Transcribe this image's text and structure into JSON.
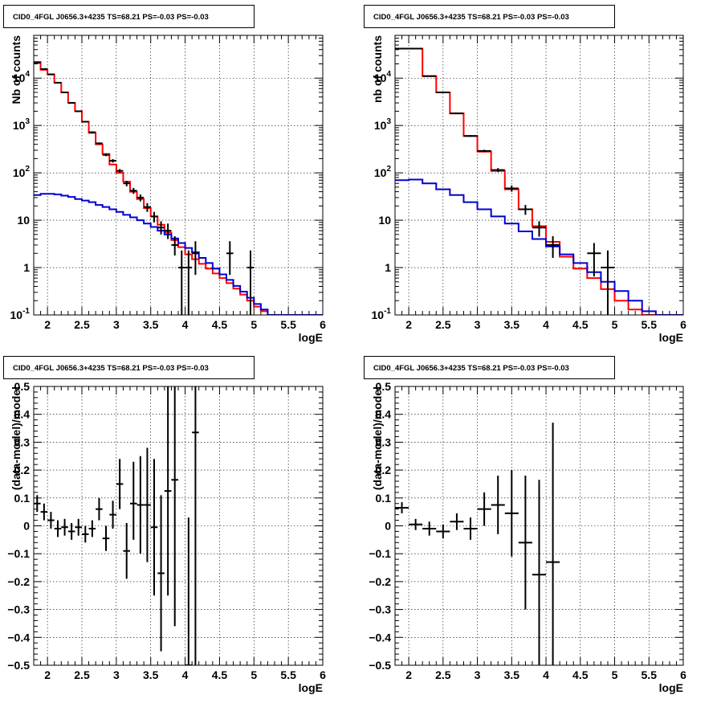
{
  "chart_data": [
    {
      "id": "top-left",
      "type": "line",
      "title": "CID0_4FGL J0656.3+4235 TS=68.21 PS=-0.03 PS=-0.03",
      "xlabel": "logE",
      "ylabel": "Nb of counts",
      "log_y": true,
      "xlim": [
        1.8,
        6.0
      ],
      "ylim": [
        0.1,
        80000
      ],
      "x_ticks": [
        "2",
        "2.5",
        "3",
        "3.5",
        "4",
        "4.5",
        "5",
        "5.5",
        "6"
      ],
      "y_ticks": [
        "10^-1",
        "1",
        "10",
        "10^2",
        "10^3",
        "10^4"
      ],
      "grid": true,
      "bin_edges": [
        1.8,
        1.9,
        2.0,
        2.1,
        2.2,
        2.3,
        2.4,
        2.5,
        2.6,
        2.7,
        2.8,
        2.9,
        3.0,
        3.1,
        3.2,
        3.3,
        3.4,
        3.5,
        3.6,
        3.7,
        3.8,
        3.9,
        4.0,
        4.1,
        4.2,
        4.3,
        4.4,
        4.5,
        4.6,
        4.7,
        4.8,
        4.9,
        5.0,
        5.1,
        5.2,
        5.3,
        5.4,
        5.5,
        5.6,
        5.7,
        5.8,
        5.9,
        6.0
      ],
      "series": [
        {
          "color": "#ff0000",
          "style": "step",
          "values": [
            22000,
            15000,
            12000,
            8000,
            5000,
            3000,
            2000,
            1200,
            700,
            400,
            250,
            150,
            100,
            65,
            40,
            28,
            18,
            12,
            8,
            5.5,
            3.8,
            2.7,
            1.9,
            1.5,
            1.2,
            0.95,
            0.75,
            0.6,
            0.47,
            0.36,
            0.27,
            0.2,
            0.15,
            0.12,
            0.1,
            0.1,
            0.1,
            0.1,
            0.1,
            0.1,
            0.1,
            0.1
          ]
        },
        {
          "color": "#0000d0",
          "style": "step",
          "values": [
            34,
            36,
            36,
            35,
            33,
            31,
            28,
            26,
            24,
            21,
            19,
            17,
            15,
            13,
            11.5,
            10,
            8.5,
            7.2,
            6,
            5,
            4.1,
            3.3,
            2.6,
            2.1,
            1.6,
            1.25,
            0.95,
            0.72,
            0.55,
            0.41,
            0.31,
            0.23,
            0.17,
            0.13,
            0.1,
            0.1,
            0.1,
            0.1,
            0.1,
            0.1,
            0.1,
            0.1
          ]
        }
      ],
      "points": [
        {
          "x": 1.85,
          "y": 21000,
          "xerr": 0.05,
          "ylo": 20800,
          "yhi": 21200
        },
        {
          "x": 1.95,
          "y": 15500,
          "xerr": 0.05,
          "ylo": 15300,
          "yhi": 15700
        },
        {
          "x": 2.05,
          "y": 12000,
          "xerr": 0.05,
          "ylo": 11800,
          "yhi": 12200
        },
        {
          "x": 2.15,
          "y": 8000,
          "xerr": 0.05,
          "ylo": 7900,
          "yhi": 8100
        },
        {
          "x": 2.25,
          "y": 5000,
          "xerr": 0.05,
          "ylo": 4900,
          "yhi": 5100
        },
        {
          "x": 2.35,
          "y": 3000,
          "xerr": 0.05,
          "ylo": 2950,
          "yhi": 3050
        },
        {
          "x": 2.45,
          "y": 2000,
          "xerr": 0.05,
          "ylo": 1950,
          "yhi": 2050
        },
        {
          "x": 2.55,
          "y": 1200,
          "xerr": 0.05,
          "ylo": 1170,
          "yhi": 1230
        },
        {
          "x": 2.65,
          "y": 720,
          "xerr": 0.05,
          "ylo": 690,
          "yhi": 750
        },
        {
          "x": 2.75,
          "y": 420,
          "xerr": 0.05,
          "ylo": 400,
          "yhi": 440
        },
        {
          "x": 2.85,
          "y": 240,
          "xerr": 0.05,
          "ylo": 225,
          "yhi": 255
        },
        {
          "x": 2.95,
          "y": 180,
          "xerr": 0.05,
          "ylo": 165,
          "yhi": 195
        },
        {
          "x": 3.05,
          "y": 110,
          "xerr": 0.05,
          "ylo": 100,
          "yhi": 120
        },
        {
          "x": 3.15,
          "y": 60,
          "xerr": 0.05,
          "ylo": 52,
          "yhi": 68
        },
        {
          "x": 3.25,
          "y": 42,
          "xerr": 0.05,
          "ylo": 36,
          "yhi": 48
        },
        {
          "x": 3.35,
          "y": 30,
          "xerr": 0.05,
          "ylo": 25,
          "yhi": 35
        },
        {
          "x": 3.45,
          "y": 19,
          "xerr": 0.05,
          "ylo": 15,
          "yhi": 23
        },
        {
          "x": 3.55,
          "y": 12,
          "xerr": 0.05,
          "ylo": 9,
          "yhi": 15
        },
        {
          "x": 3.65,
          "y": 7,
          "xerr": 0.05,
          "ylo": 5,
          "yhi": 9.5
        },
        {
          "x": 3.75,
          "y": 6,
          "xerr": 0.05,
          "ylo": 4,
          "yhi": 8.5
        },
        {
          "x": 3.85,
          "y": 3,
          "xerr": 0.05,
          "ylo": 1.8,
          "yhi": 4.6
        },
        {
          "x": 3.95,
          "y": 1,
          "xerr": 0.05,
          "ylo": 0.1,
          "yhi": 2.3
        },
        {
          "x": 4.05,
          "y": 1,
          "xerr": 0.05,
          "ylo": 0.1,
          "yhi": 2.3
        },
        {
          "x": 4.15,
          "y": 2,
          "xerr": 0.05,
          "ylo": 0.7,
          "yhi": 3.6
        },
        {
          "x": 4.65,
          "y": 2,
          "xerr": 0.05,
          "ylo": 0.7,
          "yhi": 3.6
        },
        {
          "x": 4.95,
          "y": 1,
          "xerr": 0.05,
          "ylo": 0.1,
          "yhi": 2.3
        }
      ]
    },
    {
      "id": "top-right",
      "type": "line",
      "title": "CID0_4FGL J0656.3+4235 TS=68.21 PS=-0.03 PS=-0.03",
      "xlabel": "logE",
      "ylabel": "nb of counts",
      "log_y": true,
      "xlim": [
        1.8,
        6.0
      ],
      "ylim": [
        0.1,
        80000
      ],
      "x_ticks": [
        "2",
        "2.5",
        "3",
        "3.5",
        "4",
        "4.5",
        "5",
        "5.5",
        "6"
      ],
      "y_ticks": [
        "10^-1",
        "1",
        "10",
        "10^2",
        "10^3",
        "10^4"
      ],
      "grid": true,
      "bin_edges": [
        1.8,
        2.0,
        2.2,
        2.4,
        2.6,
        2.8,
        3.0,
        3.2,
        3.4,
        3.6,
        3.8,
        4.0,
        4.2,
        4.4,
        4.6,
        4.8,
        5.0,
        5.2,
        5.4,
        5.6,
        5.8,
        6.0
      ],
      "series": [
        {
          "color": "#ff0000",
          "style": "step",
          "values": [
            42000,
            42000,
            11000,
            5000,
            1800,
            600,
            280,
            110,
            45,
            17,
            7.5,
            3.5,
            1.7,
            0.95,
            0.6,
            0.35,
            0.2,
            0.13,
            0.1,
            0.1,
            0.1
          ]
        },
        {
          "color": "#0000d0",
          "style": "step",
          "values": [
            70,
            72,
            60,
            45,
            34,
            24,
            17,
            12,
            8.5,
            5.8,
            4.0,
            2.8,
            1.9,
            1.25,
            0.8,
            0.5,
            0.32,
            0.2,
            0.12,
            0.1,
            0.1
          ]
        }
      ],
      "points": [
        {
          "x": 1.9,
          "y": 42000,
          "xerr": 0.1,
          "ylo": 41700,
          "yhi": 42300
        },
        {
          "x": 2.1,
          "y": 42000,
          "xerr": 0.1,
          "ylo": 41700,
          "yhi": 42300
        },
        {
          "x": 2.3,
          "y": 11000,
          "xerr": 0.1,
          "ylo": 10900,
          "yhi": 11100
        },
        {
          "x": 2.5,
          "y": 5000,
          "xerr": 0.1,
          "ylo": 4930,
          "yhi": 5070
        },
        {
          "x": 2.7,
          "y": 1800,
          "xerr": 0.1,
          "ylo": 1760,
          "yhi": 1840
        },
        {
          "x": 2.9,
          "y": 600,
          "xerr": 0.1,
          "ylo": 575,
          "yhi": 625
        },
        {
          "x": 3.1,
          "y": 290,
          "xerr": 0.1,
          "ylo": 273,
          "yhi": 307
        },
        {
          "x": 3.3,
          "y": 115,
          "xerr": 0.1,
          "ylo": 104,
          "yhi": 126
        },
        {
          "x": 3.5,
          "y": 47,
          "xerr": 0.1,
          "ylo": 40,
          "yhi": 54
        },
        {
          "x": 3.7,
          "y": 17,
          "xerr": 0.1,
          "ylo": 13,
          "yhi": 21
        },
        {
          "x": 3.9,
          "y": 7,
          "xerr": 0.1,
          "ylo": 4.5,
          "yhi": 9.5
        },
        {
          "x": 4.1,
          "y": 3,
          "xerr": 0.1,
          "ylo": 1.6,
          "yhi": 4.6
        },
        {
          "x": 4.7,
          "y": 2,
          "xerr": 0.1,
          "ylo": 0.65,
          "yhi": 3.3
        },
        {
          "x": 4.9,
          "y": 1,
          "xerr": 0.1,
          "ylo": 0.1,
          "yhi": 2.3
        }
      ]
    },
    {
      "id": "bottom-left",
      "type": "scatter",
      "title": "CID0_4FGL J0656.3+4235 TS=68.21 PS=-0.03 PS=-0.03",
      "xlabel": "logE",
      "ylabel": "(data-model)/model",
      "log_y": false,
      "xlim": [
        1.8,
        6.0
      ],
      "ylim": [
        -0.5,
        0.5
      ],
      "x_ticks": [
        "2",
        "2.5",
        "3",
        "3.5",
        "4",
        "4.5",
        "5",
        "5.5",
        "6"
      ],
      "y_ticks": [
        "−0.5",
        "−0.4",
        "−0.3",
        "−0.2",
        "−0.1",
        "0",
        "0.1",
        "0.2",
        "0.3",
        "0.4",
        "0.5"
      ],
      "y_tick_values": [
        -0.5,
        -0.4,
        -0.3,
        -0.2,
        -0.1,
        0,
        0.1,
        0.2,
        0.3,
        0.4,
        0.5
      ],
      "grid": true,
      "points": [
        {
          "x": 1.85,
          "y": 0.08,
          "xerr": 0.05,
          "ylo": 0.05,
          "yhi": 0.11
        },
        {
          "x": 1.95,
          "y": 0.05,
          "xerr": 0.05,
          "ylo": 0.02,
          "yhi": 0.08
        },
        {
          "x": 2.05,
          "y": 0.02,
          "xerr": 0.05,
          "ylo": -0.01,
          "yhi": 0.05
        },
        {
          "x": 2.15,
          "y": -0.01,
          "xerr": 0.05,
          "ylo": -0.04,
          "yhi": 0.02
        },
        {
          "x": 2.25,
          "y": -0.005,
          "xerr": 0.05,
          "ylo": -0.035,
          "yhi": 0.025
        },
        {
          "x": 2.35,
          "y": -0.02,
          "xerr": 0.05,
          "ylo": -0.05,
          "yhi": 0.01
        },
        {
          "x": 2.45,
          "y": -0.005,
          "xerr": 0.05,
          "ylo": -0.035,
          "yhi": 0.025
        },
        {
          "x": 2.55,
          "y": -0.03,
          "xerr": 0.05,
          "ylo": -0.06,
          "yhi": 0.0
        },
        {
          "x": 2.65,
          "y": -0.01,
          "xerr": 0.05,
          "ylo": -0.04,
          "yhi": 0.02
        },
        {
          "x": 2.75,
          "y": 0.06,
          "xerr": 0.05,
          "ylo": 0.02,
          "yhi": 0.1
        },
        {
          "x": 2.85,
          "y": -0.045,
          "xerr": 0.05,
          "ylo": -0.09,
          "yhi": 0.0
        },
        {
          "x": 2.95,
          "y": 0.04,
          "xerr": 0.05,
          "ylo": -0.01,
          "yhi": 0.09
        },
        {
          "x": 3.05,
          "y": 0.15,
          "xerr": 0.05,
          "ylo": 0.06,
          "yhi": 0.24
        },
        {
          "x": 3.15,
          "y": -0.09,
          "xerr": 0.05,
          "ylo": -0.19,
          "yhi": 0.01
        },
        {
          "x": 3.25,
          "y": 0.08,
          "xerr": 0.05,
          "ylo": -0.05,
          "yhi": 0.23
        },
        {
          "x": 3.35,
          "y": 0.075,
          "xerr": 0.05,
          "ylo": -0.1,
          "yhi": 0.25
        },
        {
          "x": 3.45,
          "y": 0.075,
          "xerr": 0.05,
          "ylo": -0.13,
          "yhi": 0.28
        },
        {
          "x": 3.55,
          "y": -0.005,
          "xerr": 0.05,
          "ylo": -0.25,
          "yhi": 0.24
        },
        {
          "x": 3.65,
          "y": -0.17,
          "xerr": 0.05,
          "ylo": -0.45,
          "yhi": 0.11
        },
        {
          "x": 3.75,
          "y": 0.125,
          "xerr": 0.05,
          "ylo": -0.25,
          "yhi": 0.5
        },
        {
          "x": 3.85,
          "y": 0.165,
          "xerr": 0.05,
          "ylo": -0.36,
          "yhi": 0.5
        },
        {
          "x": 4.05,
          "y": -0.5,
          "xerr": 0.05,
          "ylo": -0.5,
          "yhi": 0.03
        },
        {
          "x": 4.15,
          "y": 0.335,
          "xerr": 0.05,
          "ylo": -0.5,
          "yhi": 0.5
        }
      ]
    },
    {
      "id": "bottom-right",
      "type": "scatter",
      "title": "CID0_4FGL J0656.3+4235 TS=68.21 PS=-0.03 PS=-0.03",
      "xlabel": "logE",
      "ylabel": "(data-model)/model",
      "log_y": false,
      "xlim": [
        1.8,
        6.0
      ],
      "ylim": [
        -0.5,
        0.5
      ],
      "x_ticks": [
        "2",
        "2.5",
        "3",
        "3.5",
        "4",
        "4.5",
        "5",
        "5.5",
        "6"
      ],
      "y_ticks": [
        "−0.5",
        "−0.4",
        "−0.3",
        "−0.2",
        "−0.1",
        "0",
        "0.1",
        "0.2",
        "0.3",
        "0.4",
        "0.5"
      ],
      "y_tick_values": [
        -0.5,
        -0.4,
        -0.3,
        -0.2,
        -0.1,
        0,
        0.1,
        0.2,
        0.3,
        0.4,
        0.5
      ],
      "grid": true,
      "points": [
        {
          "x": 1.9,
          "y": 0.065,
          "xerr": 0.1,
          "ylo": 0.045,
          "yhi": 0.085
        },
        {
          "x": 2.1,
          "y": 0.005,
          "xerr": 0.1,
          "ylo": -0.015,
          "yhi": 0.025
        },
        {
          "x": 2.3,
          "y": -0.01,
          "xerr": 0.1,
          "ylo": -0.035,
          "yhi": 0.015
        },
        {
          "x": 2.5,
          "y": -0.02,
          "xerr": 0.1,
          "ylo": -0.045,
          "yhi": 0.005
        },
        {
          "x": 2.7,
          "y": 0.015,
          "xerr": 0.1,
          "ylo": -0.015,
          "yhi": 0.045
        },
        {
          "x": 2.9,
          "y": -0.01,
          "xerr": 0.1,
          "ylo": -0.05,
          "yhi": 0.03
        },
        {
          "x": 3.1,
          "y": 0.06,
          "xerr": 0.1,
          "ylo": 0.0,
          "yhi": 0.12
        },
        {
          "x": 3.3,
          "y": 0.075,
          "xerr": 0.1,
          "ylo": -0.03,
          "yhi": 0.18
        },
        {
          "x": 3.5,
          "y": 0.045,
          "xerr": 0.1,
          "ylo": -0.11,
          "yhi": 0.2
        },
        {
          "x": 3.7,
          "y": -0.06,
          "xerr": 0.1,
          "ylo": -0.3,
          "yhi": 0.18
        },
        {
          "x": 3.9,
          "y": -0.175,
          "xerr": 0.1,
          "ylo": -0.5,
          "yhi": 0.165
        },
        {
          "x": 4.1,
          "y": -0.13,
          "xerr": 0.1,
          "ylo": -0.5,
          "yhi": 0.37
        }
      ]
    }
  ]
}
